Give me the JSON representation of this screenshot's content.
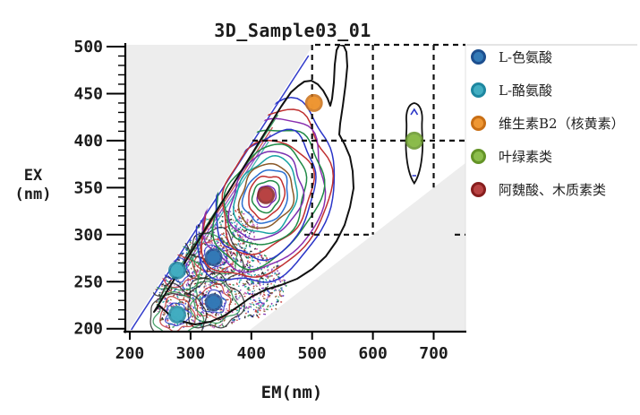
{
  "figure": {
    "title": "3D_Sample03_01"
  },
  "axes": {
    "x": {
      "label": "EM(nm)",
      "tick_values": [
        200,
        300,
        400,
        500,
        600,
        700
      ],
      "range": [
        193,
        752
      ]
    },
    "y": {
      "label_line1": "EX",
      "label_line2": "(nm)",
      "tick_values": [
        500,
        450,
        400,
        350,
        300,
        250,
        200
      ],
      "minor_step": 10,
      "range": [
        197,
        502
      ]
    }
  },
  "legend": {
    "items": [
      {
        "label": "L-色氨酸",
        "color": "#337ab7",
        "rim": "#1d4f8f"
      },
      {
        "label": "L-酪氨酸",
        "color": "#42aec2",
        "rim": "#1e87a0"
      },
      {
        "label": "维生素B2（核黄素）",
        "color": "#ef9733",
        "rim": "#c96f15"
      },
      {
        "label": "叶绿素类",
        "color": "#8cbd4c",
        "rim": "#649427"
      },
      {
        "label": "阿魏酸、木质素类",
        "color": "#b94343",
        "rim": "#871e1e"
      }
    ]
  },
  "chart_data": {
    "type": "contour",
    "title": "3D_Sample03_01",
    "xlabel": "EM(nm)",
    "ylabel": "EX(nm)",
    "x_range": [
      193,
      752
    ],
    "y_range": [
      197,
      502
    ],
    "x_ticks": [
      200,
      300,
      400,
      500,
      600,
      700
    ],
    "y_ticks": [
      500,
      450,
      400,
      350,
      300,
      250,
      200
    ],
    "y_minor_step": 10,
    "masked_regions": [
      {
        "name": "rayleigh-scatter-region",
        "description": "upper-left triangle where EM <= EX, masked light gray"
      },
      {
        "name": "second-order-scatter-region",
        "description": "lower-right triangle where EM >= 2*EX, masked light gray"
      }
    ],
    "guide_lines": {
      "style": "dashed",
      "vertical_em": [
        500,
        600,
        700
      ],
      "horizontal_ex": [
        400,
        300
      ]
    },
    "peaks": [
      {
        "em": 424,
        "ex": 342,
        "note": "main contour peak (ferulic acid / lignin region)"
      },
      {
        "em": 335,
        "ex": 270,
        "note": "dense noisy fluorescence cluster"
      },
      {
        "em": 335,
        "ex": 225,
        "note": "dense noisy fluorescence cluster"
      },
      {
        "em": 668,
        "ex": 400,
        "note": "small isolated peak (chlorophyll region)"
      }
    ],
    "markers": [
      {
        "label": "L-色氨酸",
        "color": "#337ab7",
        "rim": "#1d4f8f",
        "points": [
          {
            "em": 338,
            "ex": 276
          },
          {
            "em": 338,
            "ex": 228
          }
        ]
      },
      {
        "label": "L-酪氨酸",
        "color": "#42aec2",
        "rim": "#1e87a0",
        "points": [
          {
            "em": 278,
            "ex": 262
          },
          {
            "em": 278,
            "ex": 215
          }
        ]
      },
      {
        "label": "维生素B2（核黄素）",
        "color": "#ef9733",
        "rim": "#c96f15",
        "points": [
          {
            "em": 503,
            "ex": 440
          }
        ]
      },
      {
        "label": "叶绿素类",
        "color": "#8cbd4c",
        "rim": "#649427",
        "points": [
          {
            "em": 668,
            "ex": 400
          }
        ]
      },
      {
        "label": "阿魏酸、木质素类",
        "color": "#b94343",
        "rim": "#871e1e",
        "points": [
          {
            "em": 424,
            "ex": 342
          }
        ]
      }
    ],
    "contour_line_colors": [
      "#111111",
      "#2a35c8",
      "#c03030",
      "#1f8a46",
      "#7a2fb0",
      "#8a5a2a",
      "#17a2a2",
      "#2a6fd0"
    ],
    "legend_position": "right"
  }
}
